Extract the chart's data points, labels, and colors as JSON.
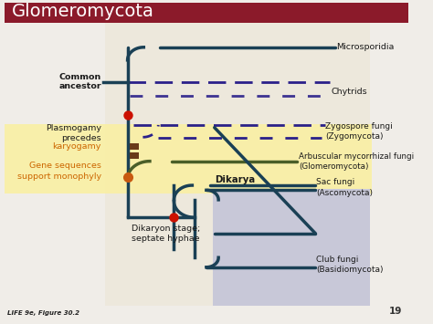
{
  "title": "Glomeromycota",
  "title_bg": "#8B1A2A",
  "title_color": "#ffffff",
  "bg_main": "#ede8dc",
  "bg_dikarya": "#c8c8d8",
  "bg_yellow": "#faf0a0",
  "bg_white": "#f0ede8",
  "dark_teal": "#1a4055",
  "olive_green": "#4a5e28",
  "purple_dashed": "#2a208a",
  "red_dot": "#cc1100",
  "brown_bar": "#6a3a1a",
  "orange_node": "#c85a10",
  "labels": {
    "microsporidia": "Microsporidia",
    "chytrids": "Chytrids",
    "zygospore": "Zygospore fungi\n(Zygomycota)",
    "arbuscular": "Arbuscular mycorrhizal fungi\n(Glomeromycota)",
    "sac": "Sac fungi\n(Ascomycota)",
    "club": "Club fungi\n(Basidiomycota)",
    "common_ancestor": "Common\nancestor",
    "plasmogamy_line1": "Plasmogamy\nprecedes",
    "karyogamy": "karyogamy",
    "karyogamy_color": "#cc6600",
    "gene_sequences": "Gene sequences\nsupport monophyly",
    "gene_color": "#cc6600",
    "dikarya": "Dikarya",
    "dikaryon": "Dikaryon stage;\nseptate hyphae",
    "life_caption": "LIFE 9e, Figure 30.2"
  },
  "xlim": [
    0,
    10
  ],
  "ylim": [
    0,
    10
  ]
}
